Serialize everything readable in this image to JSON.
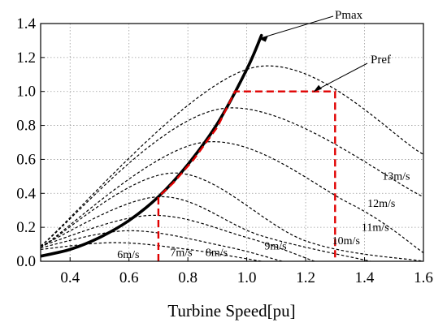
{
  "chart_data": {
    "type": "line",
    "title": "",
    "xlabel": "Turbine Speed[pu]",
    "ylabel": "",
    "xlim": [
      0.3,
      1.6
    ],
    "ylim": [
      0.0,
      1.4
    ],
    "x_ticks": [
      0.4,
      0.6,
      0.8,
      1.0,
      1.2,
      1.4,
      1.6
    ],
    "y_ticks": [
      0.0,
      0.2,
      0.4,
      0.6,
      0.8,
      1.0,
      1.2,
      1.4
    ],
    "x_tick_labels": [
      "0.4",
      "0.6",
      "0.8",
      "1.0",
      "1.2",
      "1.4",
      "1.6"
    ],
    "y_tick_labels": [
      "0.0",
      "0.2",
      "0.4",
      "0.6",
      "0.8",
      "1.0",
      "1.2",
      "1.4"
    ],
    "grid": true,
    "series": [
      {
        "name": "Pmax",
        "style": "solid-thick",
        "color": "#000000",
        "x": [
          0.3,
          0.4,
          0.5,
          0.6,
          0.7,
          0.8,
          0.9,
          1.0,
          1.05
        ],
        "y": [
          0.03,
          0.07,
          0.14,
          0.24,
          0.38,
          0.57,
          0.81,
          1.13,
          1.33
        ]
      },
      {
        "name": "6m/s",
        "style": "dashed",
        "color": "#000000",
        "x": [
          0.3,
          0.55,
          0.8,
          1.05
        ],
        "y": [
          0.07,
          0.11,
          0.07,
          0.0
        ]
      },
      {
        "name": "7m/s",
        "style": "dashed",
        "color": "#000000",
        "x": [
          0.3,
          0.6,
          0.92,
          1.12
        ],
        "y": [
          0.08,
          0.18,
          0.09,
          0.0
        ]
      },
      {
        "name": "8m/s",
        "style": "dashed",
        "color": "#000000",
        "x": [
          0.3,
          0.67,
          1.0,
          1.23
        ],
        "y": [
          0.09,
          0.27,
          0.14,
          0.0
        ]
      },
      {
        "name": "9m/s",
        "style": "dashed",
        "color": "#000000",
        "x": [
          0.3,
          0.7,
          1.05,
          1.42
        ],
        "y": [
          0.09,
          0.38,
          0.15,
          0.0
        ]
      },
      {
        "name": "10m/s",
        "style": "dashed",
        "color": "#000000",
        "x": [
          0.3,
          0.75,
          1.2,
          1.6
        ],
        "y": [
          0.08,
          0.52,
          0.12,
          0.0
        ]
      },
      {
        "name": "11m/s",
        "style": "dashed",
        "color": "#000000",
        "x": [
          0.3,
          0.85,
          1.35,
          1.6
        ],
        "y": [
          0.08,
          0.7,
          0.34,
          0.05
        ]
      },
      {
        "name": "12m/s",
        "style": "dashed",
        "color": "#000000",
        "x": [
          0.3,
          0.92,
          1.6
        ],
        "y": [
          0.09,
          0.9,
          0.38
        ]
      },
      {
        "name": "13m/s",
        "style": "dashed",
        "color": "#000000",
        "x": [
          0.3,
          1.02,
          1.6
        ],
        "y": [
          0.09,
          1.14,
          0.63
        ]
      },
      {
        "name": "Pref",
        "style": "dashed-red",
        "color": "#e00000",
        "x": [
          0.7,
          0.7,
          0.75,
          0.82,
          0.9,
          0.96,
          0.96,
          1.3,
          1.3
        ],
        "y": [
          0.0,
          0.38,
          0.46,
          0.6,
          0.79,
          1.0,
          1.0,
          1.0,
          0.0
        ]
      }
    ],
    "annotations": [
      {
        "text": "Pmax",
        "target": [
          1.05,
          1.33
        ]
      },
      {
        "text": "Pref",
        "target": [
          1.2,
          1.0
        ]
      }
    ],
    "wind_labels": [
      {
        "text": "6m/s",
        "at": [
          0.56,
          0.02
        ]
      },
      {
        "text": "7m/s",
        "at": [
          0.74,
          0.03
        ]
      },
      {
        "text": "8m/s",
        "at": [
          0.86,
          0.03
        ]
      },
      {
        "text": "9m/s",
        "at": [
          1.06,
          0.07
        ]
      },
      {
        "text": "10m/s",
        "at": [
          1.29,
          0.1
        ]
      },
      {
        "text": "11m/s",
        "at": [
          1.39,
          0.18
        ]
      },
      {
        "text": "12m/s",
        "at": [
          1.41,
          0.32
        ]
      },
      {
        "text": "13m/s",
        "at": [
          1.46,
          0.48
        ]
      }
    ]
  }
}
